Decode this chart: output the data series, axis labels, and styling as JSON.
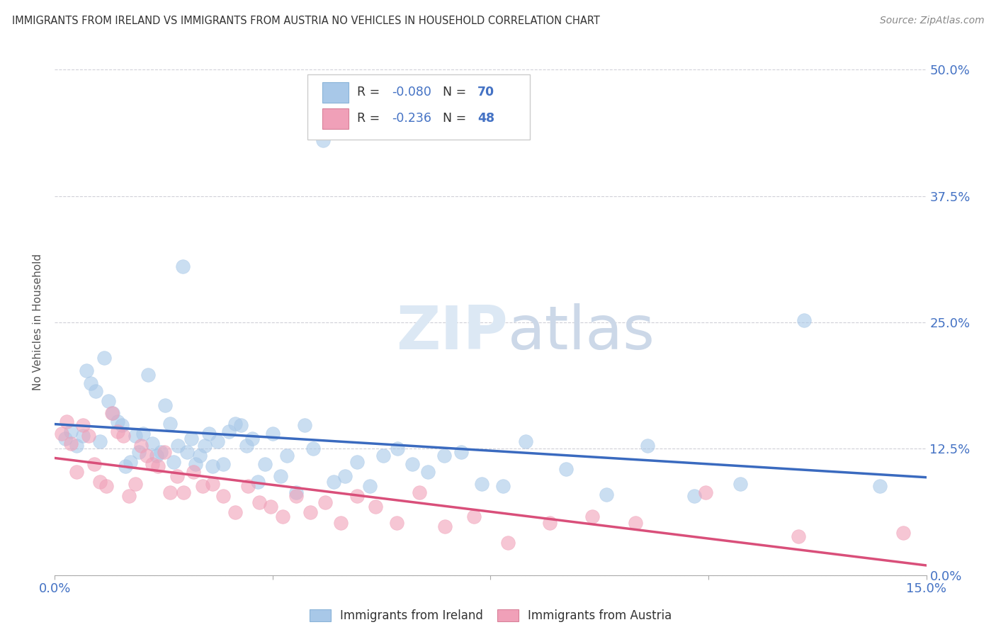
{
  "title": "IMMIGRANTS FROM IRELAND VS IMMIGRANTS FROM AUSTRIA NO VEHICLES IN HOUSEHOLD CORRELATION CHART",
  "source": "Source: ZipAtlas.com",
  "ylabel": "No Vehicles in Household",
  "legend_label1": "Immigrants from Ireland",
  "legend_label2": "Immigrants from Austria",
  "r1": -0.08,
  "n1": 70,
  "r2": -0.236,
  "n2": 48,
  "xlim": [
    0.0,
    15.0
  ],
  "ylim": [
    0.0,
    50.0
  ],
  "yticks": [
    0.0,
    12.5,
    25.0,
    37.5,
    50.0
  ],
  "color_ireland": "#a8c8e8",
  "color_austria": "#f0a0b8",
  "color_ireland_line": "#3a6abf",
  "color_austria_line": "#d94f7a",
  "background_color": "#ffffff",
  "ireland_x": [
    0.18,
    0.28,
    0.38,
    0.48,
    0.55,
    0.62,
    0.7,
    0.78,
    0.85,
    0.92,
    1.0,
    1.08,
    1.15,
    1.22,
    1.3,
    1.38,
    1.45,
    1.52,
    1.6,
    1.68,
    1.75,
    1.82,
    1.9,
    1.98,
    2.05,
    2.12,
    2.2,
    2.28,
    2.35,
    2.42,
    2.5,
    2.58,
    2.65,
    2.72,
    2.8,
    2.9,
    3.0,
    3.1,
    3.2,
    3.3,
    3.4,
    3.5,
    3.62,
    3.75,
    3.88,
    4.0,
    4.15,
    4.3,
    4.45,
    4.62,
    4.8,
    5.0,
    5.2,
    5.42,
    5.65,
    5.9,
    6.15,
    6.42,
    6.7,
    7.0,
    7.35,
    7.72,
    8.1,
    8.8,
    9.5,
    10.2,
    11.0,
    11.8,
    12.9,
    14.2
  ],
  "ireland_y": [
    13.5,
    14.2,
    12.8,
    13.8,
    20.2,
    19.0,
    18.2,
    13.2,
    21.5,
    17.2,
    16.0,
    15.2,
    14.8,
    10.8,
    11.2,
    13.8,
    12.2,
    14.0,
    19.8,
    13.0,
    11.8,
    12.2,
    16.8,
    15.0,
    11.2,
    12.8,
    30.5,
    12.2,
    13.5,
    11.0,
    11.8,
    12.8,
    14.0,
    10.8,
    13.2,
    11.0,
    14.2,
    15.0,
    14.8,
    12.8,
    13.5,
    9.2,
    11.0,
    14.0,
    9.8,
    11.8,
    8.2,
    14.8,
    12.5,
    43.0,
    9.2,
    9.8,
    11.2,
    8.8,
    11.8,
    12.5,
    11.0,
    10.2,
    11.8,
    12.2,
    9.0,
    8.8,
    13.2,
    10.5,
    8.0,
    12.8,
    7.8,
    9.0,
    25.2,
    8.8
  ],
  "austria_x": [
    0.12,
    0.2,
    0.28,
    0.38,
    0.48,
    0.58,
    0.68,
    0.78,
    0.88,
    0.98,
    1.08,
    1.18,
    1.28,
    1.38,
    1.48,
    1.58,
    1.68,
    1.78,
    1.88,
    1.98,
    2.1,
    2.22,
    2.38,
    2.55,
    2.72,
    2.9,
    3.1,
    3.32,
    3.52,
    3.72,
    3.92,
    4.15,
    4.4,
    4.65,
    4.92,
    5.2,
    5.52,
    5.88,
    6.28,
    6.72,
    7.22,
    7.8,
    8.52,
    9.25,
    10.0,
    11.2,
    12.8,
    14.6
  ],
  "austria_y": [
    14.0,
    15.2,
    13.0,
    10.2,
    14.8,
    13.8,
    11.0,
    9.2,
    8.8,
    16.0,
    14.2,
    13.8,
    7.8,
    9.0,
    12.8,
    11.8,
    11.0,
    10.8,
    12.2,
    8.2,
    9.8,
    8.2,
    10.2,
    8.8,
    9.0,
    7.8,
    6.2,
    8.8,
    7.2,
    6.8,
    5.8,
    7.8,
    6.2,
    7.2,
    5.2,
    7.8,
    6.8,
    5.2,
    8.2,
    4.8,
    5.8,
    3.2,
    5.2,
    5.8,
    5.2,
    8.2,
    3.8,
    4.2
  ]
}
